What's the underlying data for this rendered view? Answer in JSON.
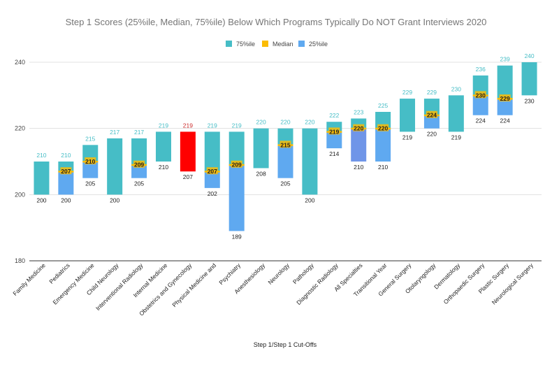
{
  "chart_data": {
    "type": "bar",
    "subtype": "floating-stacked",
    "title": "Step 1 Scores (25%ile, Median, 75%ile) Below Which Programs Typically Do NOT Grant Interviews 2020",
    "xlabel": "Step 1/Step 1 Cut-Offs",
    "ylabel": "",
    "ylim": [
      180,
      240
    ],
    "yticks": [
      180,
      200,
      220,
      240
    ],
    "grid": true,
    "legend_position": "top-center",
    "legend": [
      {
        "name": "75%ile",
        "color": "#46bdc6"
      },
      {
        "name": "Median",
        "color": "#fbbc04"
      },
      {
        "name": "25%ile",
        "color": "#5fa9f0"
      }
    ],
    "colors": {
      "p75": "#46bdc6",
      "median": "#fbbc04",
      "p25": "#5fa9f0",
      "highlight": "#ff0000",
      "top_label": "#46bdc6",
      "highlight_label": "#cc2b2b",
      "all_specialties_p25": "#6f95e8"
    },
    "categories": [
      "Family Medicine",
      "Pediatrics",
      "Emergency Medicine",
      "Child Neurology",
      "Interventional Radiology",
      "Internal Medicine",
      "Obstetrics and Gynecology",
      "Physical Medicine and",
      "Psychiatry",
      "Anesthesiology",
      "Neurology",
      "Pathology",
      "Diagnostic Radiology",
      "All Specialties",
      "Transitional Year",
      "General Surgery",
      "Otolaryngology",
      "Dermatology",
      "Orthopaedic Surgery",
      "Plastic Surgery",
      "Neurological Surgery"
    ],
    "series": [
      {
        "name": "25%ile",
        "values": [
          200,
          200,
          205,
          200,
          205,
          210,
          207,
          202,
          189,
          208,
          205,
          200,
          214,
          210,
          210,
          219,
          220,
          219,
          224,
          224,
          230
        ]
      },
      {
        "name": "Median",
        "values": [
          null,
          207,
          210,
          null,
          209,
          null,
          null,
          207,
          209,
          null,
          215,
          null,
          219,
          220,
          220,
          null,
          224,
          null,
          230,
          229,
          null
        ]
      },
      {
        "name": "75%ile",
        "values": [
          210,
          210,
          215,
          217,
          217,
          219,
          219,
          219,
          219,
          220,
          220,
          220,
          222,
          223,
          225,
          229,
          229,
          230,
          236,
          239,
          240
        ]
      }
    ],
    "highlight_index": 6,
    "bottom_labels": [
      "200",
      "200",
      "205",
      "200",
      "205",
      "210",
      "207",
      "202",
      "189",
      "208",
      "205",
      "200",
      "214",
      "210",
      "210",
      "219",
      "220",
      "219",
      "224",
      "224",
      "230"
    ],
    "median_labels": [
      "",
      "207",
      "210",
      "",
      "209",
      "",
      "",
      "207",
      "209",
      "",
      "215",
      "",
      "219",
      "220",
      "220",
      "",
      "224",
      "",
      "230",
      "229",
      ""
    ],
    "top_labels": [
      "210",
      "210",
      "215",
      "217",
      "217",
      "219",
      "219",
      "219",
      "219",
      "220",
      "220",
      "220",
      "222",
      "223",
      "225",
      "229",
      "229",
      "230",
      "236",
      "239",
      "240"
    ]
  }
}
